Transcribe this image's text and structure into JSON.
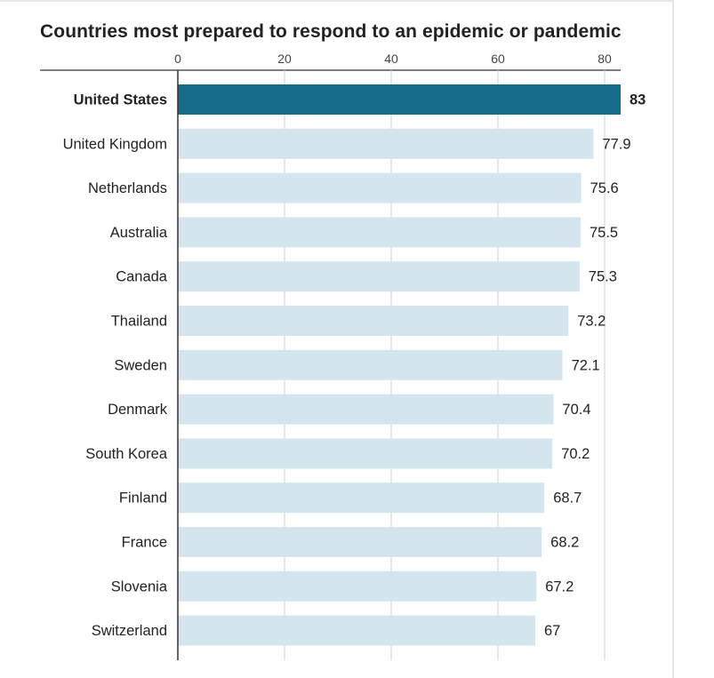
{
  "chart_data": {
    "type": "bar",
    "orientation": "horizontal",
    "title": "Countries most prepared to respond to an epidemic or pandemic",
    "xlabel": "",
    "ylabel": "",
    "xlim": [
      0,
      83
    ],
    "ticks": [
      0,
      20,
      40,
      60,
      80
    ],
    "tick_labels": [
      "0",
      "20",
      "40",
      "60",
      "80"
    ],
    "grid": true,
    "categories": [
      "United States",
      "United Kingdom",
      "Netherlands",
      "Australia",
      "Canada",
      "Thailand",
      "Sweden",
      "Denmark",
      "South Korea",
      "Finland",
      "France",
      "Slovenia",
      "Switzerland"
    ],
    "values": [
      83,
      77.9,
      75.6,
      75.5,
      75.3,
      73.2,
      72.1,
      70.4,
      70.2,
      68.7,
      68.2,
      67.2,
      67
    ],
    "value_labels": [
      "83",
      "77.9",
      "75.6",
      "75.5",
      "75.3",
      "73.2",
      "72.1",
      "70.4",
      "70.2",
      "68.7",
      "68.2",
      "67.2",
      "67"
    ],
    "highlight_index": 0,
    "colors": {
      "highlight": "#166d8b",
      "bar": "#d5e5ee",
      "grid": "#cccccc",
      "axis": "#333333",
      "text": "#222222"
    }
  }
}
